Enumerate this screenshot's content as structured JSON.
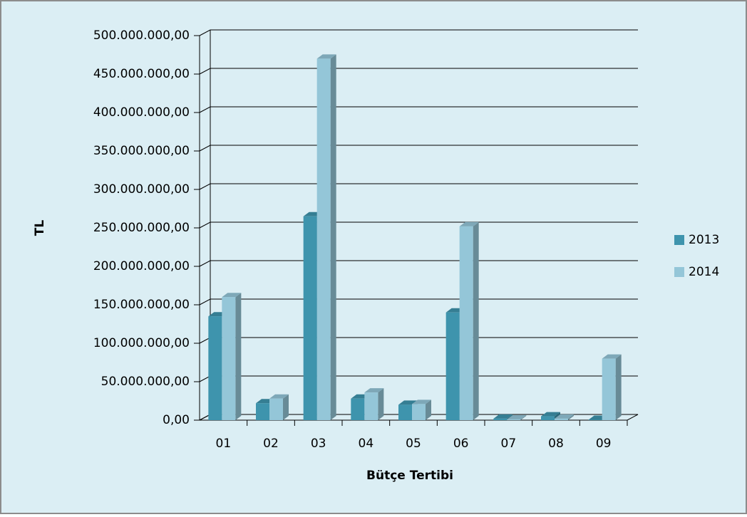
{
  "chart_data": {
    "type": "bar",
    "x_label": "Bütçe Tertibi",
    "y_label": "TL",
    "categories": [
      "01",
      "02",
      "03",
      "04",
      "05",
      "06",
      "07",
      "08",
      "09"
    ],
    "series": [
      {
        "name": "2013",
        "color": "#3e94ad",
        "values": [
          135000000,
          22000000,
          265000000,
          28000000,
          20000000,
          140000000,
          2000000,
          5000000,
          500000
        ]
      },
      {
        "name": "2014",
        "color": "#94c6d8",
        "values": [
          160000000,
          28000000,
          470000000,
          36000000,
          21000000,
          252000000,
          1000000,
          2000000,
          80000000
        ]
      }
    ],
    "ylim": [
      0,
      500000000
    ],
    "yticks": [
      {
        "value": 0,
        "label": "0,00"
      },
      {
        "value": 50000000,
        "label": "50.000.000,00"
      },
      {
        "value": 100000000,
        "label": "100.000.000,00"
      },
      {
        "value": 150000000,
        "label": "150.000.000,00"
      },
      {
        "value": 200000000,
        "label": "200.000.000,00"
      },
      {
        "value": 250000000,
        "label": "250.000.000,00"
      },
      {
        "value": 300000000,
        "label": "300.000.000,00"
      },
      {
        "value": 350000000,
        "label": "350.000.000,00"
      },
      {
        "value": 400000000,
        "label": "400.000.000,00"
      },
      {
        "value": 450000000,
        "label": "450.000.000,00"
      },
      {
        "value": 500000000,
        "label": "500.000.000,00"
      }
    ],
    "grid": true,
    "legend": "right"
  }
}
